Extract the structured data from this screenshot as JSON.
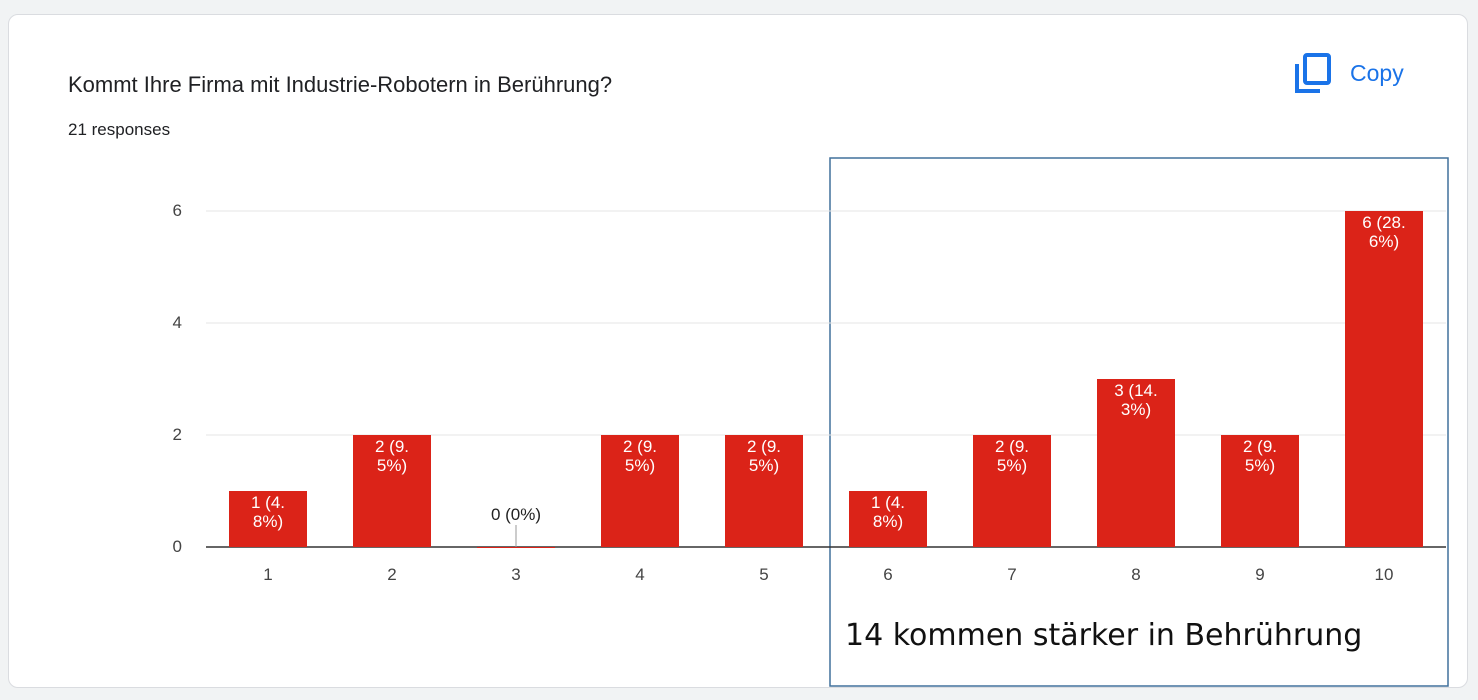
{
  "chart_data": {
    "type": "bar",
    "title": "Kommt Ihre Firma mit Industrie-Robotern in Berührung?",
    "subtitle": "21 responses",
    "button": "Copy",
    "annotation": "14 kommen stärker in Behrührung",
    "categories": [
      "1",
      "2",
      "3",
      "4",
      "5",
      "6",
      "7",
      "8",
      "9",
      "10"
    ],
    "values": [
      1,
      2,
      0,
      2,
      2,
      1,
      2,
      3,
      2,
      6
    ],
    "value_labels": [
      "1 (4.8%)",
      "2 (9.5%)",
      "0 (0%)",
      "2 (9.5%)",
      "2 (9.5%)",
      "1 (4.8%)",
      "2 (9.5%)",
      "3 (14.3%)",
      "2 (9.5%)",
      "6 (28.6%)"
    ],
    "color": "#db2318",
    "ylim": [
      0,
      6
    ],
    "yticks": [
      0,
      2,
      4,
      6
    ],
    "grid": true
  }
}
